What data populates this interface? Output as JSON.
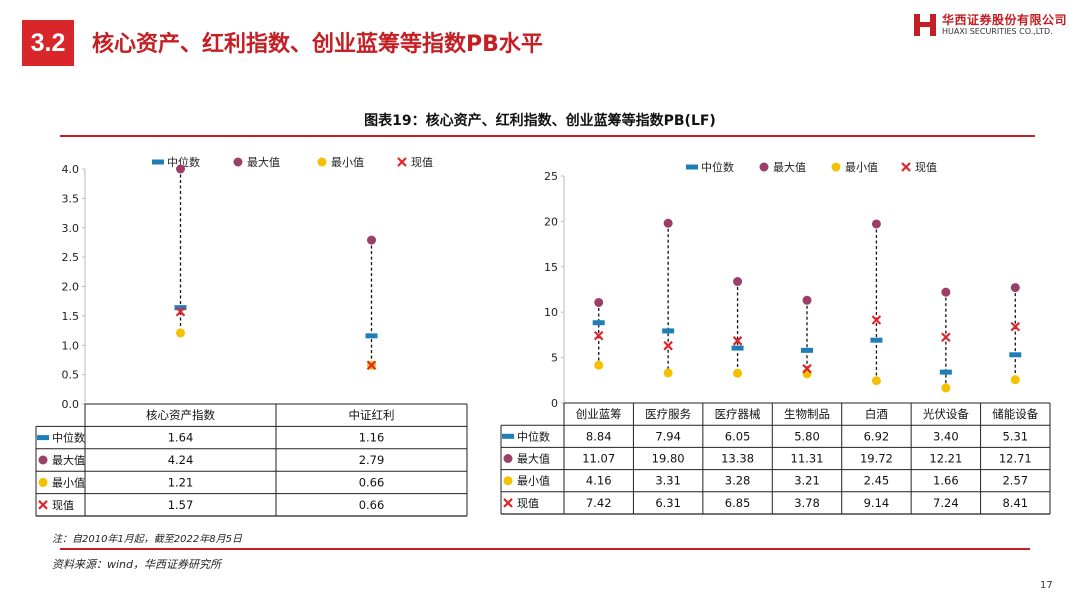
{
  "header": {
    "section_number": "3.2",
    "title": "核心资产、红利指数、创业蓝筹等指数PB水平"
  },
  "logo": {
    "name_cn": "华西证券股份有限公司",
    "name_en": "HUAXI SECURITIES CO.,LTD.",
    "brand_color": "#c41f24"
  },
  "figure": {
    "title": "图表19：核心资产、红利指数、创业蓝筹等指数PB(LF)"
  },
  "footer": {
    "note": "注：自2010年1月起，截至2022年8月5日",
    "source": "资料来源：wind，华西证券研究所",
    "page": "17"
  },
  "legend_labels": [
    "中位数",
    "最大值",
    "最小值",
    "现值"
  ],
  "legend_symbols": {
    "中位数": "median-dash",
    "最大值": "max-circle",
    "最小值": "min-circle",
    "现值": "current-cross"
  },
  "colors": {
    "median": "#1e7fb8",
    "max": "#9b3f68",
    "min": "#f5c000",
    "current": "#e0262b",
    "accent": "#c41f24"
  },
  "chart_data": [
    {
      "type": "table",
      "ylim": [
        0,
        4.0
      ],
      "yticks": [
        "0.0",
        "0.5",
        "1.0",
        "1.5",
        "2.0",
        "2.5",
        "3.0",
        "3.5",
        "4.0"
      ],
      "categories": [
        "核心资产指数",
        "中证红利"
      ],
      "series": [
        {
          "name": "中位数",
          "values": [
            1.64,
            1.16
          ],
          "display": [
            "1.64",
            "1.16"
          ]
        },
        {
          "name": "最大值",
          "values": [
            4.24,
            2.79
          ],
          "display": [
            "4.24",
            "2.79"
          ]
        },
        {
          "name": "最小值",
          "values": [
            1.21,
            0.66
          ],
          "display": [
            "1.21",
            "0.66"
          ]
        },
        {
          "name": "现值",
          "values": [
            1.57,
            0.66
          ],
          "display": [
            "1.57",
            "0.66"
          ]
        }
      ]
    },
    {
      "type": "table",
      "ylim": [
        0,
        25
      ],
      "yticks": [
        "0",
        "5",
        "10",
        "15",
        "20",
        "25"
      ],
      "categories": [
        "创业蓝筹",
        "医疗服务",
        "医疗器械",
        "生物制品",
        "白酒",
        "光伏设备",
        "储能设备"
      ],
      "series": [
        {
          "name": "中位数",
          "values": [
            8.84,
            7.94,
            6.05,
            5.8,
            6.92,
            3.4,
            5.31
          ],
          "display": [
            "8.84",
            "7.94",
            "6.05",
            "5.80",
            "6.92",
            "3.40",
            "5.31"
          ]
        },
        {
          "name": "最大值",
          "values": [
            11.07,
            19.8,
            13.38,
            11.31,
            19.72,
            12.21,
            12.71
          ],
          "display": [
            "11.07",
            "19.80",
            "13.38",
            "11.31",
            "19.72",
            "12.21",
            "12.71"
          ]
        },
        {
          "name": "最小值",
          "values": [
            4.16,
            3.31,
            3.28,
            3.21,
            2.45,
            1.66,
            2.57
          ],
          "display": [
            "4.16",
            "3.31",
            "3.28",
            "3.21",
            "2.45",
            "1.66",
            "2.57"
          ]
        },
        {
          "name": "现值",
          "values": [
            7.42,
            6.31,
            6.85,
            3.78,
            9.14,
            7.24,
            8.41
          ],
          "display": [
            "7.42",
            "6.31",
            "6.85",
            "3.78",
            "9.14",
            "7.24",
            "8.41"
          ]
        }
      ]
    }
  ]
}
